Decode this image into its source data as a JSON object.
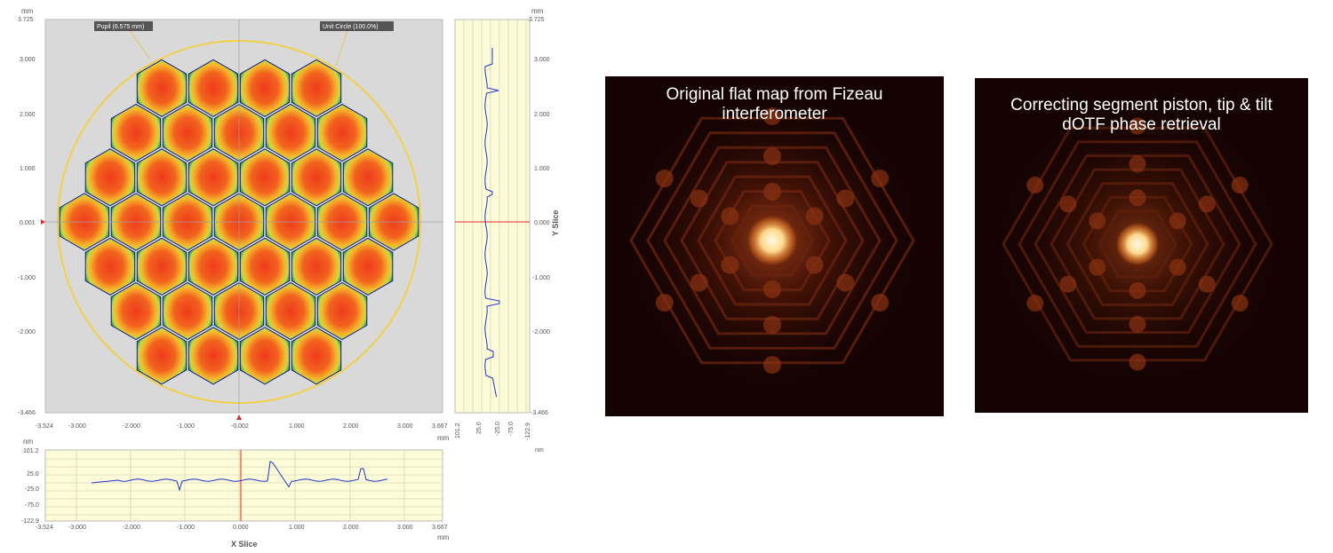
{
  "interferometer": {
    "unit_top_left": "mm",
    "unit_top_right": "mm",
    "unit_bottom_right": "mm",
    "unit_xslice_left": "nm",
    "unit_yslice_nm": "nm",
    "pupil_label": "Pupil (6.575 mm)",
    "unit_circle_label": "Unit Circle (100.0%)",
    "y_ticks": [
      "3.725",
      "3.000",
      "2.000",
      "1.000",
      "0.001",
      "-1.000",
      "-2.000",
      "-3.466"
    ],
    "y_slice_ticks": [
      "3.725",
      "3.000",
      "2.000",
      "1.000",
      "0.000",
      "-1.000",
      "-2.000",
      "-3.466"
    ],
    "x_ticks": [
      "-3.524",
      "-3.000",
      "-2.000",
      "-1.000",
      "-0.002",
      "1.000",
      "2.000",
      "3.000",
      "3.667"
    ],
    "x_slice_x_ticks": [
      "-3.524",
      "-3.000",
      "-2.000",
      "-1.000",
      "0.000",
      "1.000",
      "2.000",
      "3.000",
      "3.667"
    ],
    "slice_nm_ticks": [
      "101.2",
      "25.0",
      "-25.0",
      "-75.0",
      "-122.9"
    ],
    "x_slice_title": "X Slice",
    "y_slice_title": "Y Slice"
  },
  "psf_panels": [
    {
      "caption_line1": "Original flat map from Fizeau",
      "caption_line2": "interferometer"
    },
    {
      "caption_line1": "Correcting segment piston, tip & tilt",
      "caption_line2": "dOTF phase retrieval"
    }
  ],
  "colors": {
    "map_bg": "#d9d9d9",
    "unit_circle": "#f2d04a",
    "slice_bg": "#fdfbd8",
    "trace": "#1a36c9",
    "marker": "#e03020"
  }
}
